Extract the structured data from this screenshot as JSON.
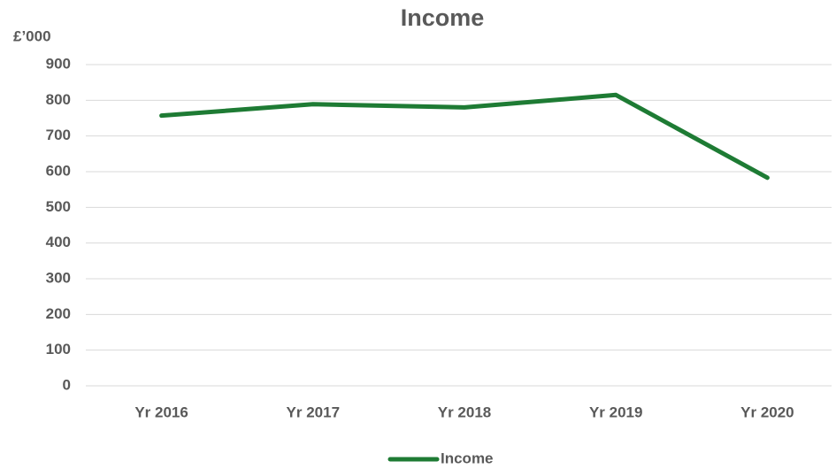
{
  "chart_data": {
    "type": "line",
    "title": "Income",
    "y_label": "£’000",
    "categories": [
      "Yr 2016",
      "Yr 2017",
      "Yr 2018",
      "Yr 2019",
      "Yr 2020"
    ],
    "series": [
      {
        "name": "Income",
        "color": "#1e7b34",
        "values": [
          757,
          789,
          780,
          815,
          583
        ]
      }
    ],
    "ylim": [
      0,
      900
    ],
    "yticks": [
      0,
      100,
      200,
      300,
      400,
      500,
      600,
      700,
      800,
      900
    ],
    "grid": true,
    "legend": "bottom"
  }
}
